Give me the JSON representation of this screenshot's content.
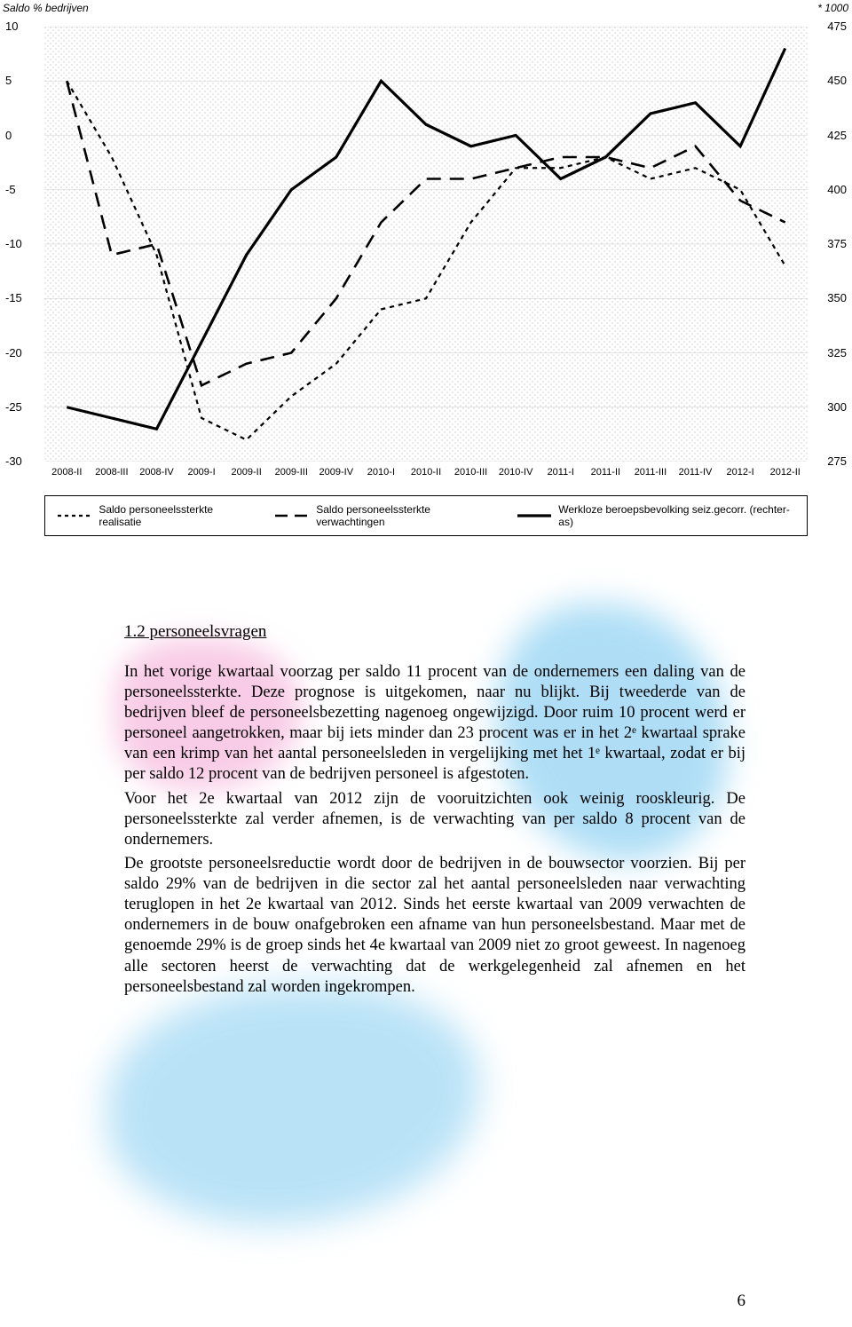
{
  "chart": {
    "type": "line",
    "left_axis_title": "Saldo % bedrijven",
    "right_axis_title": "* 1000",
    "x_categories": [
      "2008-II",
      "2008-III",
      "2008-IV",
      "2009-I",
      "2009-II",
      "2009-III",
      "2009-IV",
      "2010-I",
      "2010-II",
      "2010-III",
      "2010-IV",
      "2011-I",
      "2011-II",
      "2011-III",
      "2011-IV",
      "2012-I",
      "2012-II"
    ],
    "y_left_ticks": [
      10,
      5,
      0,
      -5,
      -10,
      -15,
      -20,
      -25,
      -30
    ],
    "y_right_ticks": [
      475,
      450,
      425,
      400,
      375,
      350,
      325,
      300,
      275
    ],
    "y_left_lim": [
      -30,
      10
    ],
    "y_right_lim": [
      275,
      475
    ],
    "plot_background": "#ffffff",
    "dot_pattern_color": "#dddddd",
    "grid_color": "#cccccc",
    "label_fontsize": 12,
    "tick_fontsize": 13,
    "series": [
      {
        "name": "Saldo personeelssterkte realisatie",
        "axis": "left",
        "color": "#000000",
        "line_style": "short-dash",
        "line_width": 2.2,
        "values": [
          5,
          -2,
          -11,
          -26,
          -28,
          -24,
          -21,
          -16,
          -15,
          -8,
          -3,
          -3,
          -2,
          -4,
          -3,
          -5,
          -12
        ]
      },
      {
        "name": "Saldo personeelssterkte verwachtingen",
        "axis": "left",
        "color": "#000000",
        "line_style": "long-dash",
        "line_width": 2.6,
        "values": [
          5,
          -11,
          -10,
          -23,
          -21,
          -20,
          -15,
          -8,
          -4,
          -4,
          -3,
          -2,
          -2,
          -3,
          -1,
          -6,
          -8
        ]
      },
      {
        "name": "Werkloze beroepsbevolking seiz.gecorr. (rechter-as)",
        "axis": "right",
        "color": "#000000",
        "line_style": "solid",
        "line_width": 3.2,
        "values": [
          300,
          295,
          290,
          330,
          370,
          400,
          415,
          450,
          430,
          420,
          425,
          405,
          415,
          435,
          440,
          420,
          465
        ]
      }
    ],
    "legend": {
      "position": "bottom",
      "items": [
        {
          "label": "Saldo personeelssterkte realisatie",
          "style": "short-dash"
        },
        {
          "label": "Saldo personeelssterkte verwachtingen",
          "style": "long-dash"
        },
        {
          "label": "Werkloze beroepsbevolking seiz.gecorr. (rechter-as)",
          "style": "solid"
        }
      ]
    }
  },
  "section": {
    "heading": "1.2 personeelsvragen",
    "paragraphs": [
      "In het vorige kwartaal voorzag per saldo 11 procent van de ondernemers een daling van de personeelssterkte. Deze prognose is uitgekomen, naar nu blijkt. Bij tweederde van de bedrijven bleef de personeelsbezetting nagenoeg ongewijzigd. Door ruim 10 procent werd er personeel aangetrokken, maar bij iets minder dan 23 procent was er in het 2ᵉ kwartaal sprake van een krimp van het aantal personeelsleden in vergelijking met het 1ᵉ kwartaal, zodat er bij per saldo 12 procent van de bedrijven personeel is afgestoten.",
      "Voor het 2e kwartaal van 2012 zijn de vooruitzichten ook weinig rooskleurig. De personeelssterkte zal verder afnemen, is de verwachting van per saldo 8 procent van de ondernemers.",
      "De grootste personeelsreductie wordt door de bedrijven in de bouwsector voorzien. Bij per saldo 29% van de bedrijven in die sector zal het aantal personeelsleden naar verwachting teruglopen in het 2e kwartaal van 2012. Sinds het eerste kwartaal van 2009 verwachten de ondernemers in de bouw onafgebroken een afname van hun personeelsbestand. Maar met de genoemde 29% is de groep sinds het 4e kwartaal van 2009 niet zo groot geweest. In nagenoeg alle sectoren heerst de verwachting dat de werkgelegenheid zal afnemen en het personeelsbestand zal worden ingekrompen."
    ]
  },
  "page_number": "6"
}
